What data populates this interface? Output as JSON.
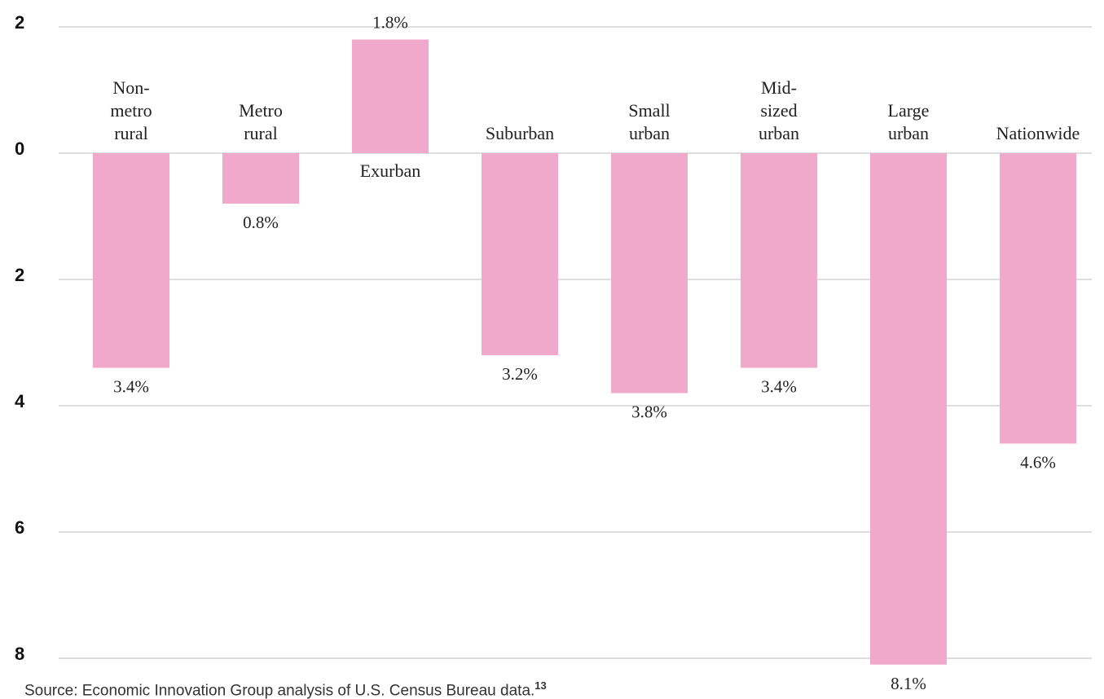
{
  "chart_data": {
    "type": "bar",
    "categories": [
      "Non-metro rural",
      "Metro rural",
      "Exurban",
      "Suburban",
      "Small urban",
      "Mid-sized urban",
      "Large urban",
      "Nationwide"
    ],
    "values": [
      -3.4,
      -0.8,
      1.8,
      -3.2,
      -3.8,
      -3.4,
      -8.1,
      -4.6
    ],
    "value_labels": [
      "3.4%",
      "0.8%",
      "1.8%",
      "3.2%",
      "3.8%",
      "3.4%",
      "8.1%",
      "4.6%"
    ],
    "color": "#f0a9cb",
    "ylim": [
      -8,
      2
    ],
    "yticks": [
      {
        "value": -8,
        "label": "8"
      },
      {
        "value": -6,
        "label": "6"
      },
      {
        "value": -4,
        "label": "4"
      },
      {
        "value": -2,
        "label": "2"
      },
      0,
      2
    ],
    "grid": true,
    "source": "Source: Economic Innovation Group analysis of U.S. Census Bureau data.",
    "footnote": "13"
  }
}
